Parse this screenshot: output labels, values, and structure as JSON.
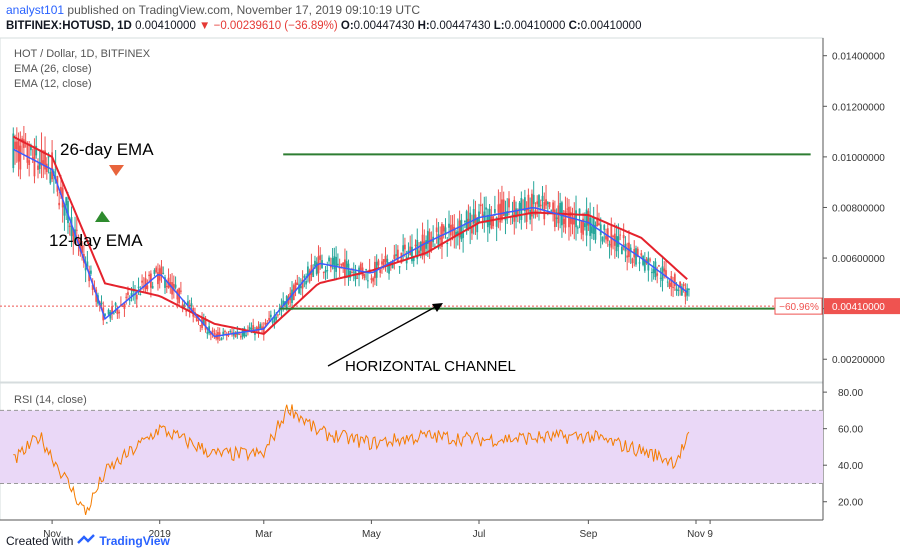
{
  "header": {
    "publisher_user": "analyst101",
    "publisher_text": "published on TradingView.com, November 17, 2019 09:10:19 UTC",
    "symbol": "BITFINEX:HOTUSD, 1D",
    "last": "0.00410000",
    "change": "▼ −0.00239610 (−36.89%)",
    "open_label": "O:",
    "open": "0.00447430",
    "high_label": "H:",
    "high": "0.00447430",
    "low_label": "L:",
    "low": "0.00410000",
    "close_label": "C:",
    "close": "0.00410000"
  },
  "legend": {
    "title": "HOT / Dollar, 1D, BITFINEX",
    "ema26": "EMA (26, close)",
    "ema12": "EMA (12, close)",
    "rsi": "RSI (14, close)"
  },
  "annotations": {
    "ema26": "26-day EMA",
    "ema12": "12-day EMA",
    "channel": "HORIZONTAL CHANNEL"
  },
  "price_tag": {
    "change": "−60.96%",
    "price": "0.00410000"
  },
  "footer": {
    "created_with": "Created with",
    "brand": "TradingView"
  },
  "colors": {
    "up": "#26a69a",
    "down": "#ef5350",
    "ema26": "#e5222c",
    "ema12": "#3d5afe",
    "channel": "#2e7d32",
    "rsi_line": "#f57c00",
    "rsi_band": "#ead8f7"
  },
  "chart_data": [
    {
      "type": "candlestick",
      "title": "HOT / Dollar, 1D, BITFINEX",
      "ylim": [
        0.0011,
        0.0147
      ],
      "y_ticks": [
        "0.01400000",
        "0.01200000",
        "0.01000000",
        "0.00800000",
        "0.00600000",
        "0.00400000",
        "0.00200000"
      ],
      "x_ticks": [
        "Nov",
        "2019",
        "Mar",
        "May",
        "Jul",
        "Sep",
        "Nov",
        "9"
      ],
      "channel": {
        "upper": 0.0101,
        "lower": 0.004
      },
      "series": [
        {
          "name": "EMA (26, close)",
          "x": [
            "Oct 10",
            "Nov 1",
            "Dec 1",
            "Jan 1",
            "Feb 1",
            "Mar 1",
            "Apr 1",
            "May 1",
            "Jun 1",
            "Jul 1",
            "Aug 1",
            "Sep 1",
            "Oct 1",
            "Oct 28"
          ],
          "values": [
            0.0108,
            0.01,
            0.005,
            0.0045,
            0.0034,
            0.003,
            0.005,
            0.0055,
            0.0062,
            0.0074,
            0.0078,
            0.0077,
            0.0068,
            0.0051
          ]
        },
        {
          "name": "EMA (12, close)",
          "x": [
            "Oct 10",
            "Nov 1",
            "Dec 1",
            "Jan 1",
            "Feb 1",
            "Mar 1",
            "Apr 1",
            "May 1",
            "Jun 1",
            "Jul 1",
            "Aug 1",
            "Sep 1",
            "Oct 1",
            "Oct 28"
          ],
          "values": [
            0.0103,
            0.0095,
            0.0036,
            0.0054,
            0.0029,
            0.0032,
            0.0058,
            0.0054,
            0.0066,
            0.0076,
            0.008,
            0.0074,
            0.006,
            0.0046
          ]
        }
      ]
    },
    {
      "type": "line",
      "title": "RSI (14, close)",
      "ylim": [
        10,
        85
      ],
      "y_ticks": [
        "80.00",
        "60.00",
        "40.00",
        "20.00"
      ],
      "band": [
        30,
        70
      ],
      "series": [
        {
          "name": "RSI (14, close)",
          "x": [
            "Oct 10",
            "Oct 25",
            "Nov 20",
            "Dec 1",
            "Jan 1",
            "Feb 1",
            "Mar 1",
            "Mar 15",
            "Apr 1",
            "May 1",
            "Jun 1",
            "Jul 1",
            "Aug 1",
            "Sep 1",
            "Oct 1",
            "Oct 20",
            "Oct 28"
          ],
          "values": [
            42,
            56,
            14,
            36,
            60,
            46,
            46,
            72,
            58,
            52,
            56,
            54,
            55,
            56,
            48,
            42,
            55
          ]
        }
      ]
    }
  ]
}
